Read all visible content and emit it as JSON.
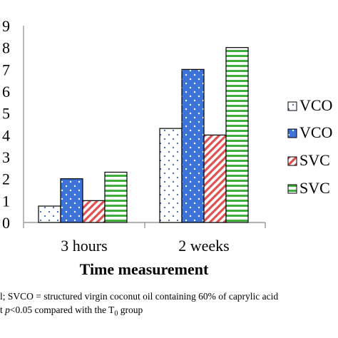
{
  "chart_data": {
    "type": "bar",
    "categories": [
      "3 hours",
      "2 weeks"
    ],
    "series": [
      {
        "name": "VCO",
        "values": [
          0.75,
          4.3
        ],
        "pattern": "dots",
        "color": "#ffffff"
      },
      {
        "name": "VCO",
        "values": [
          2.0,
          7.0
        ],
        "pattern": "dots",
        "color": "#3d72d6"
      },
      {
        "name": "SVC",
        "values": [
          1.0,
          4.0
        ],
        "pattern": "diagonal",
        "color": "#e05050"
      },
      {
        "name": "SVC",
        "values": [
          2.3,
          8.0
        ],
        "pattern": "horizontal",
        "color": "#3fae3f"
      }
    ],
    "yticks": [
      "0",
      "1",
      "2",
      "3",
      "4",
      "5",
      "6",
      "7",
      "8",
      "9"
    ],
    "ylim": [
      0,
      9
    ],
    "xlabel": "Time measurement",
    "ylabel": "",
    "title": "",
    "legend_position": "right (cropped)",
    "grid": false
  },
  "footnote": {
    "line1": "l; SVCO = structured virgin coconut oil containing 60% of caprylic acid",
    "line2_prefix": "t ",
    "line2_p": "p",
    "line2_mid": "<0.05 compared with the T",
    "line2_sub": "0",
    "line2_suffix": " group"
  }
}
